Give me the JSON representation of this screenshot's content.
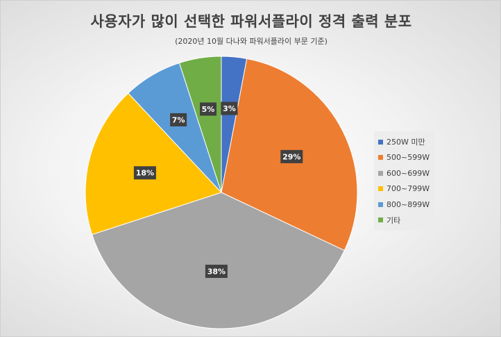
{
  "chart_data": {
    "type": "pie",
    "title": "사용자가 많이 선택한 파워서플라이 정격 출력 분포",
    "subtitle": "(2020년 10월 다나와 파워서플라이 부문 기준)",
    "legend_position": "right",
    "slices": [
      {
        "name": "250W 미만",
        "value": 3,
        "label": "3%",
        "color": "#4472C4"
      },
      {
        "name": "500~599W",
        "value": 29,
        "label": "29%",
        "color": "#ED7D31"
      },
      {
        "name": "600~699W",
        "value": 38,
        "label": "38%",
        "color": "#A5A5A5"
      },
      {
        "name": "700~799W",
        "value": 18,
        "label": "18%",
        "color": "#FFC000"
      },
      {
        "name": "800~899W",
        "value": 7,
        "label": "7%",
        "color": "#5B9BD5"
      },
      {
        "name": "기타",
        "value": 5,
        "label": "5%",
        "color": "#70AD47"
      }
    ]
  }
}
